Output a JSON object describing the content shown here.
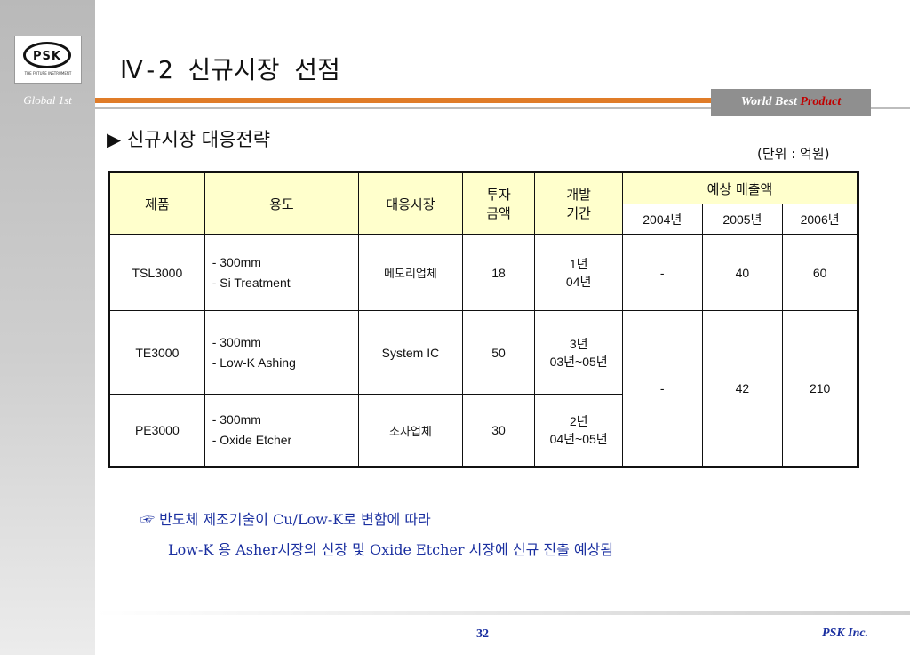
{
  "logo": {
    "text": "PSK",
    "tagline": "THE FUTURE INSTRUMENT"
  },
  "sidebar": {
    "tagline": "Global 1st"
  },
  "header": {
    "title": "Ⅳ-2  신규시장 선점",
    "badge_prefix": "World Best ",
    "badge_highlight": "Product"
  },
  "section": {
    "heading": "▶ 신규시장 대응전략",
    "unit": "(단위 : 억원)"
  },
  "table": {
    "headers": {
      "product": "제품",
      "usage": "용도",
      "market": "대응시장",
      "invest_1": "투자",
      "invest_2": "금액",
      "dev_1": "개발",
      "dev_2": "기간",
      "sales": "예상 매출액",
      "years": [
        "2004년",
        "2005년",
        "2006년"
      ]
    },
    "rows": [
      {
        "product": "TSL3000",
        "usage": [
          "- 300mm",
          "- Si Treatment"
        ],
        "market": "메모리업체",
        "invest": "18",
        "dev": [
          "1년",
          "04년"
        ],
        "sales": [
          "-",
          "40",
          "60"
        ]
      },
      {
        "product": "TE3000",
        "usage": [
          "- 300mm",
          "- Low-K Ashing"
        ],
        "market": "System IC",
        "invest": "50",
        "dev": [
          "3년",
          "03년~05년"
        ]
      },
      {
        "product": "PE3000",
        "usage": [
          "- 300mm",
          "- Oxide Etcher"
        ],
        "market": "소자업체",
        "invest": "30",
        "dev": [
          "2년",
          "04년~05년"
        ]
      }
    ],
    "merged_sales": [
      "-",
      "42",
      "210"
    ]
  },
  "notes": {
    "line1": "☞ 반도체 제조기술이 Cu/Low-K로 변함에 따라",
    "line2": "Low-K 용 Asher시장의 신장 및 Oxide Etcher 시장에 신규 진출 예상됨"
  },
  "footer": {
    "page": "32",
    "company": "PSK Inc."
  }
}
